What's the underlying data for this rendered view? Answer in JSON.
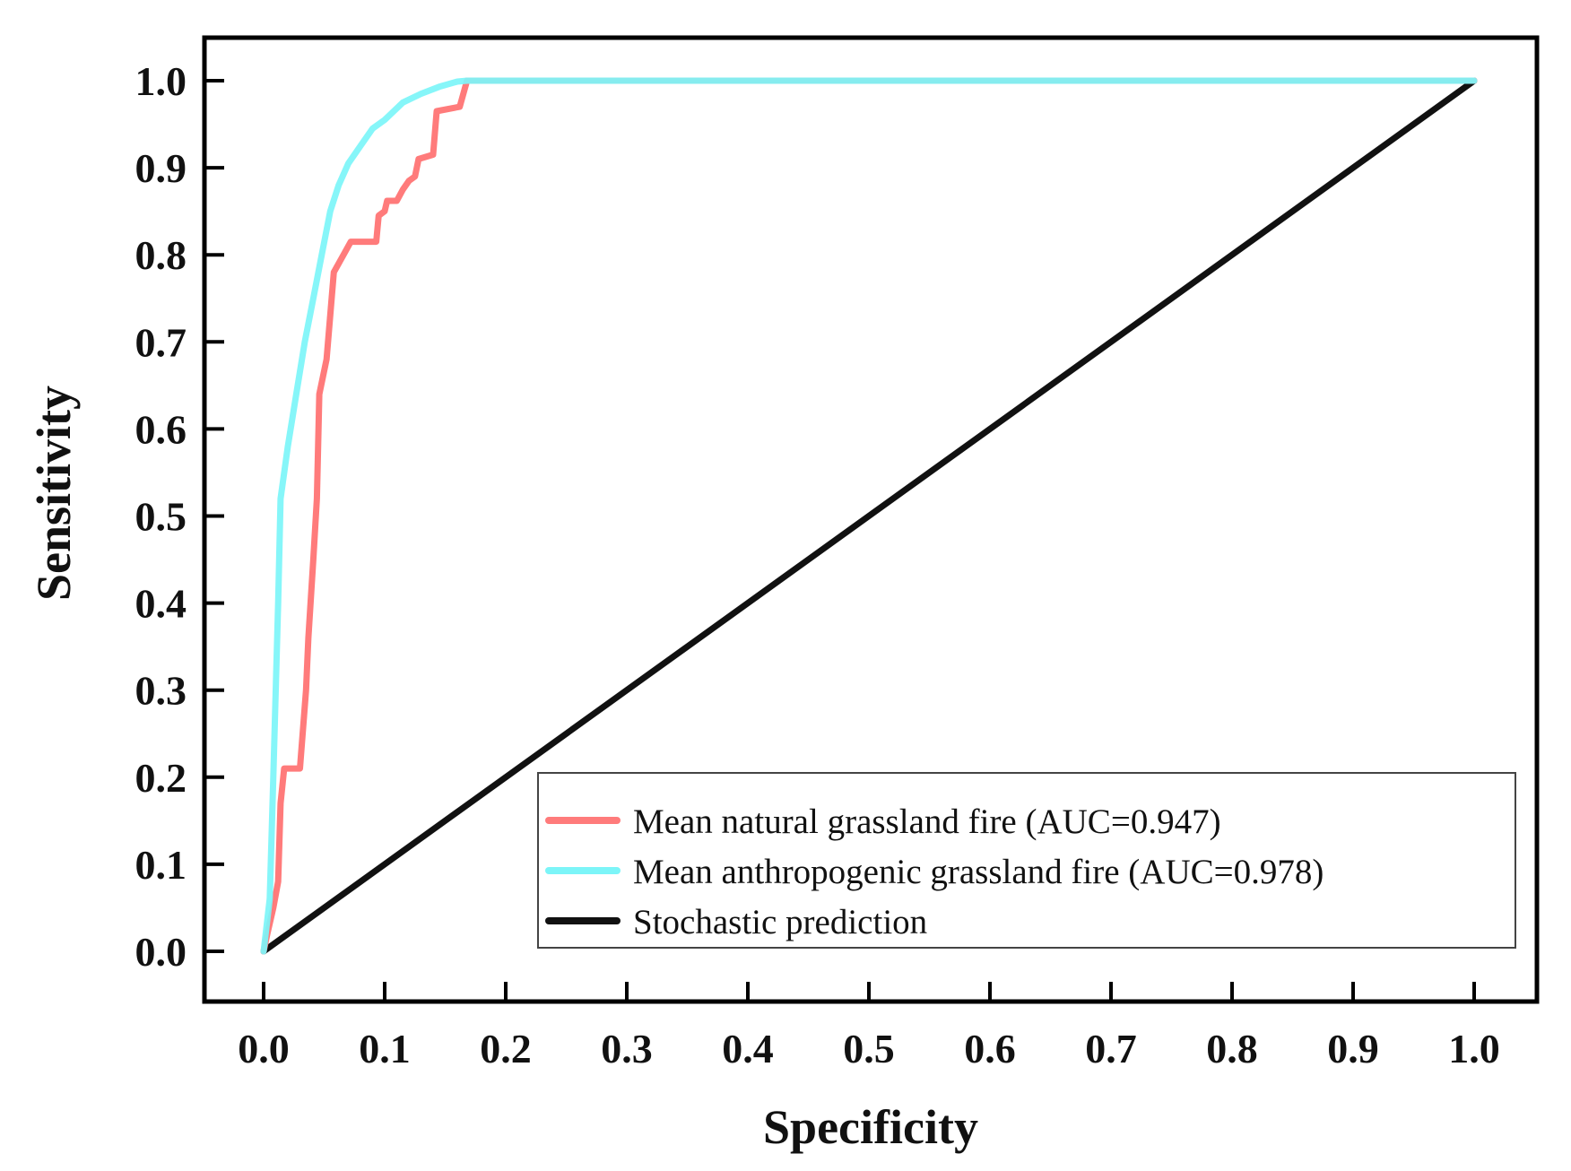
{
  "chart_data": {
    "type": "line",
    "title": "",
    "xlabel": "Specificity",
    "ylabel": "Sensitivity",
    "xlim": [
      0.0,
      1.0
    ],
    "ylim": [
      0.0,
      1.0
    ],
    "xticks": [
      "0.0",
      "0.1",
      "0.2",
      "0.3",
      "0.4",
      "0.5",
      "0.6",
      "0.7",
      "0.8",
      "0.9",
      "1.0"
    ],
    "yticks": [
      "0.0",
      "0.1",
      "0.2",
      "0.3",
      "0.4",
      "0.5",
      "0.6",
      "0.7",
      "0.8",
      "0.9",
      "1.0"
    ],
    "grid": false,
    "legend_position": "bottom-right",
    "series": [
      {
        "name": "Mean natural grassland fire (AUC=0.947)",
        "color": "#ff7b7b",
        "points": [
          [
            0.0,
            0.0
          ],
          [
            0.003,
            0.02
          ],
          [
            0.008,
            0.05
          ],
          [
            0.012,
            0.08
          ],
          [
            0.014,
            0.17
          ],
          [
            0.017,
            0.21
          ],
          [
            0.03,
            0.21
          ],
          [
            0.035,
            0.3
          ],
          [
            0.037,
            0.36
          ],
          [
            0.041,
            0.45
          ],
          [
            0.044,
            0.52
          ],
          [
            0.046,
            0.64
          ],
          [
            0.052,
            0.68
          ],
          [
            0.058,
            0.78
          ],
          [
            0.066,
            0.8
          ],
          [
            0.072,
            0.815
          ],
          [
            0.093,
            0.815
          ],
          [
            0.095,
            0.845
          ],
          [
            0.1,
            0.85
          ],
          [
            0.102,
            0.862
          ],
          [
            0.11,
            0.862
          ],
          [
            0.115,
            0.875
          ],
          [
            0.12,
            0.885
          ],
          [
            0.125,
            0.89
          ],
          [
            0.128,
            0.91
          ],
          [
            0.14,
            0.915
          ],
          [
            0.143,
            0.965
          ],
          [
            0.162,
            0.97
          ],
          [
            0.168,
            1.0
          ],
          [
            1.0,
            1.0
          ]
        ]
      },
      {
        "name": "Mean anthropogenic grassland fire (AUC=0.978)",
        "color": "#7cf5f8",
        "points": [
          [
            0.0,
            0.0
          ],
          [
            0.005,
            0.06
          ],
          [
            0.008,
            0.2
          ],
          [
            0.01,
            0.3
          ],
          [
            0.012,
            0.4
          ],
          [
            0.014,
            0.52
          ],
          [
            0.02,
            0.58
          ],
          [
            0.027,
            0.64
          ],
          [
            0.034,
            0.7
          ],
          [
            0.041,
            0.75
          ],
          [
            0.048,
            0.8
          ],
          [
            0.055,
            0.85
          ],
          [
            0.062,
            0.88
          ],
          [
            0.07,
            0.905
          ],
          [
            0.08,
            0.925
          ],
          [
            0.09,
            0.945
          ],
          [
            0.1,
            0.955
          ],
          [
            0.115,
            0.975
          ],
          [
            0.13,
            0.985
          ],
          [
            0.145,
            0.993
          ],
          [
            0.16,
            0.999
          ],
          [
            0.168,
            1.0
          ],
          [
            1.0,
            1.0
          ]
        ]
      },
      {
        "name": "Stochastic prediction",
        "color": "#111111",
        "points": [
          [
            0.0,
            0.0
          ],
          [
            1.0,
            1.0
          ]
        ]
      }
    ]
  }
}
